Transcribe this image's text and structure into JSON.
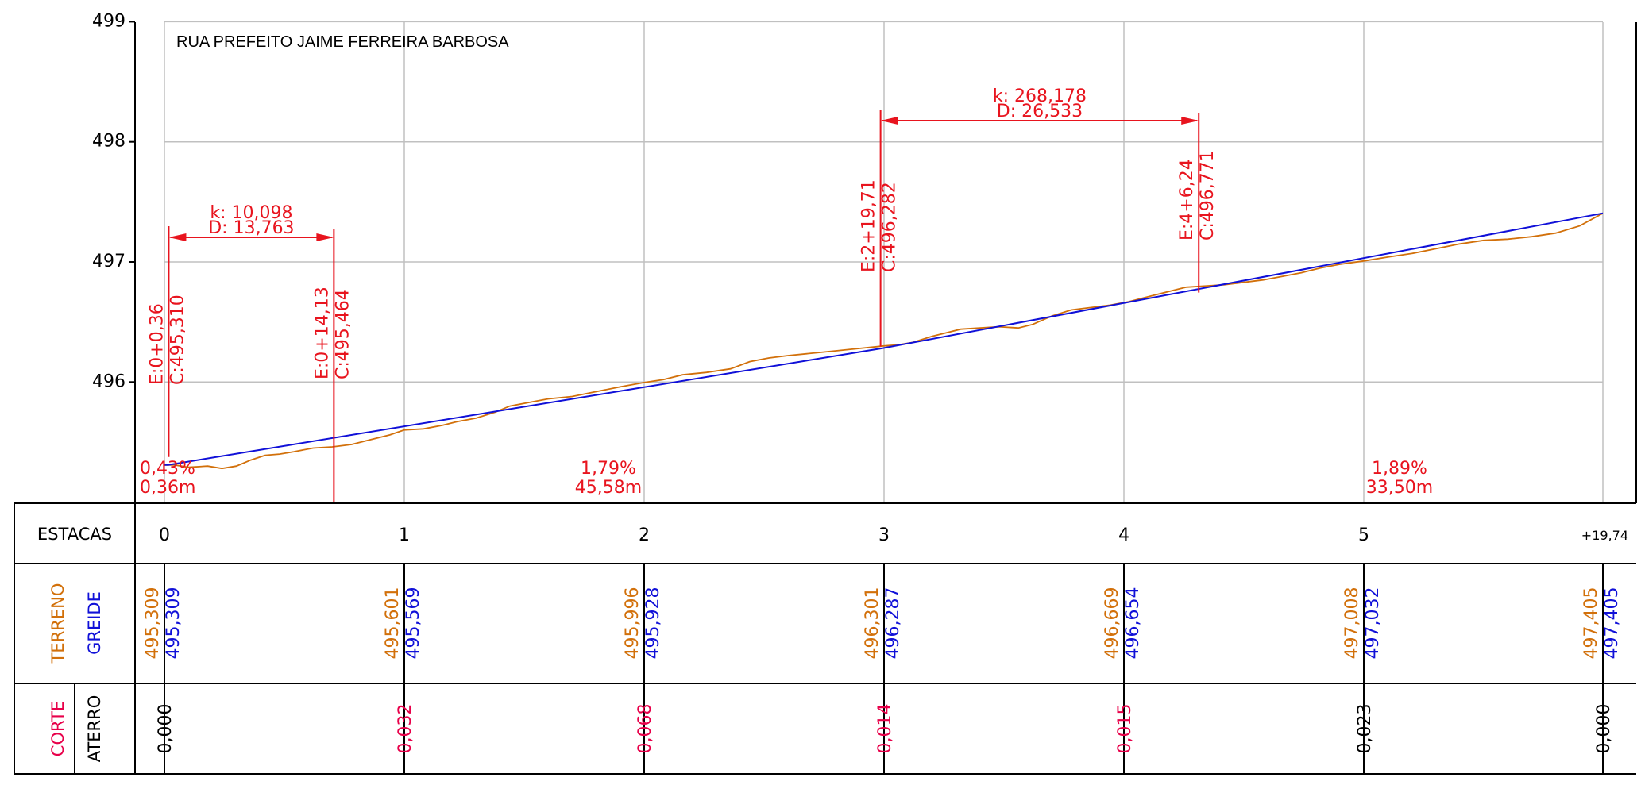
{
  "title": "RUA PREFEITO JAIME FERREIRA BARBOSA",
  "colors": {
    "terreno": "#D2700A",
    "greide": "#1010D8",
    "annotation": "#E8141E",
    "corte": "#E8004A",
    "aterro": "#000000",
    "grid": "#C0C0C0",
    "frame": "#000000"
  },
  "chart_data": {
    "type": "line",
    "x_unit": "estaca",
    "y_unit": "m",
    "ylim": [
      495.3,
      499
    ],
    "yticks": [
      "496",
      "497",
      "498",
      "499"
    ],
    "xlim": [
      0,
      5.987
    ],
    "series": [
      {
        "key": "terreno",
        "x": [
          0,
          0.04,
          0.1,
          0.18,
          0.24,
          0.3,
          0.36,
          0.42,
          0.48,
          0.54,
          0.62,
          0.7,
          0.78,
          0.86,
          0.94,
          1.0,
          1.08,
          1.16,
          1.22,
          1.3,
          1.38,
          1.44,
          1.52,
          1.6,
          1.7,
          1.8,
          1.9,
          2.0,
          2.08,
          2.16,
          2.26,
          2.36,
          2.44,
          2.52,
          2.6,
          2.7,
          2.8,
          2.9,
          3.0,
          3.06,
          3.12,
          3.2,
          3.26,
          3.32,
          3.4,
          3.48,
          3.56,
          3.62,
          3.7,
          3.78,
          3.86,
          3.94,
          4.02,
          4.1,
          4.18,
          4.26,
          4.34,
          4.42,
          4.5,
          4.58,
          4.66,
          4.74,
          4.82,
          4.9,
          5.0,
          5.1,
          5.2,
          5.3,
          5.4,
          5.5,
          5.6,
          5.7,
          5.8,
          5.9,
          5.987
        ],
        "y": [
          495.309,
          495.31,
          495.29,
          495.3,
          495.28,
          495.3,
          495.35,
          495.39,
          495.4,
          495.42,
          495.45,
          495.46,
          495.48,
          495.52,
          495.56,
          495.601,
          495.61,
          495.64,
          495.67,
          495.7,
          495.75,
          495.8,
          495.83,
          495.86,
          495.88,
          495.92,
          495.96,
          495.996,
          496.02,
          496.06,
          496.08,
          496.11,
          496.17,
          496.2,
          496.22,
          496.24,
          496.26,
          496.28,
          496.301,
          496.31,
          496.33,
          496.38,
          496.41,
          496.44,
          496.45,
          496.46,
          496.45,
          496.48,
          496.55,
          496.6,
          496.62,
          496.64,
          496.669,
          496.71,
          496.75,
          496.79,
          496.8,
          496.81,
          496.83,
          496.85,
          496.88,
          496.91,
          496.95,
          496.98,
          497.008,
          497.04,
          497.07,
          497.11,
          497.15,
          497.18,
          497.19,
          497.21,
          497.24,
          497.3,
          497.405
        ]
      },
      {
        "key": "greide",
        "x": [
          0,
          0.0156,
          2.9957,
          5.987
        ],
        "y": [
          495.309,
          495.31,
          496.282,
          497.405
        ]
      }
    ],
    "grades": [
      {
        "pct": "0,43%",
        "len": "0,36m"
      },
      {
        "pct": "1,79%",
        "len": "45,58m"
      },
      {
        "pct": "1,89%",
        "len": "33,50m"
      }
    ],
    "curves": [
      {
        "k": "k:  10,098",
        "d": "D:  13,763",
        "pt_start": {
          "x": 0.018,
          "elev": 495.31,
          "e": "E:0+0,36",
          "c": "C:495,310"
        },
        "pt_end": {
          "x": 0.7065,
          "elev": 495.464,
          "e": "E:0+14,13",
          "c": "C:495,464"
        }
      },
      {
        "k": "k:  268,178",
        "d": "D:  26,533",
        "pt_start": {
          "x": 2.9855,
          "elev": 496.282,
          "e": "E:2+19,71",
          "c": "C:496,282"
        },
        "pt_end": {
          "x": 4.312,
          "elev": 496.771,
          "e": "E:4+6,24",
          "c": "C:496,771"
        }
      }
    ]
  },
  "table": {
    "estacas_label": "ESTACAS",
    "terreno_label": "TERRENO",
    "greide_label": "GREIDE",
    "corte_label": "CORTE",
    "aterro_label": "ATERRO",
    "stations": [
      {
        "x": 0,
        "label": "0",
        "terreno": "495,309",
        "greide": "495,309",
        "cut": "0,000",
        "type": "aterro"
      },
      {
        "x": 1,
        "label": "1",
        "terreno": "495,601",
        "greide": "495,569",
        "cut": "0,032",
        "type": "corte"
      },
      {
        "x": 2,
        "label": "2",
        "terreno": "495,996",
        "greide": "495,928",
        "cut": "0,068",
        "type": "corte"
      },
      {
        "x": 3,
        "label": "3",
        "terreno": "496,301",
        "greide": "496,287",
        "cut": "0,014",
        "type": "corte"
      },
      {
        "x": 4,
        "label": "4",
        "terreno": "496,669",
        "greide": "496,654",
        "cut": "0,015",
        "type": "corte"
      },
      {
        "x": 5,
        "label": "5",
        "terreno": "497,008",
        "greide": "497,032",
        "cut": "0,023",
        "type": "aterro"
      },
      {
        "x": 5.987,
        "label": "+19,74",
        "terreno": "497,405",
        "greide": "497,405",
        "cut": "0,000",
        "type": "aterro"
      }
    ]
  }
}
